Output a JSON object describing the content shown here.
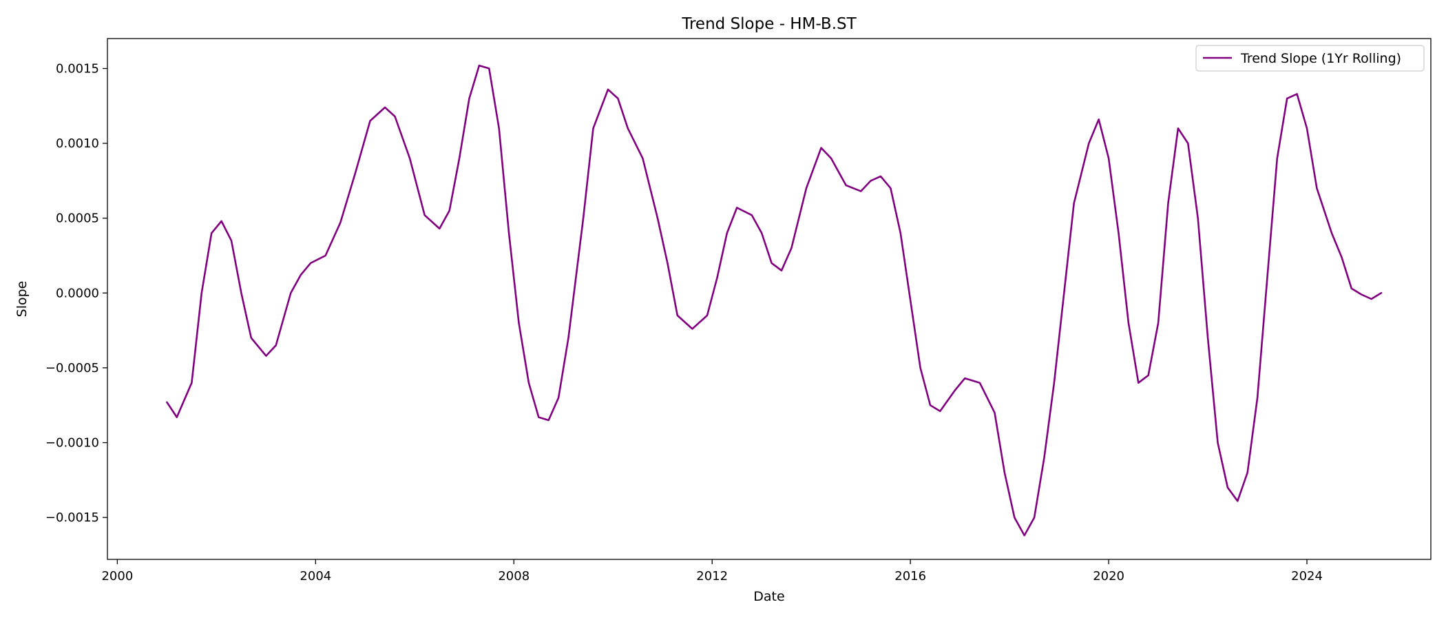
{
  "chart_data": {
    "type": "line",
    "title": "Trend Slope - HM-B.ST",
    "xlabel": "Date",
    "ylabel": "Slope",
    "xlim": [
      1999.8,
      2026.5
    ],
    "ylim": [
      -0.00178,
      0.0017
    ],
    "x_ticks": [
      2000,
      2004,
      2008,
      2012,
      2016,
      2020,
      2024
    ],
    "x_tick_labels": [
      "2000",
      "2004",
      "2008",
      "2012",
      "2016",
      "2020",
      "2024"
    ],
    "y_ticks": [
      -0.0015,
      -0.001,
      -0.0005,
      0.0,
      0.0005,
      0.001,
      0.0015
    ],
    "y_tick_labels": [
      "−0.0015",
      "−0.0010",
      "−0.0005",
      "0.0000",
      "0.0005",
      "0.0010",
      "0.0015"
    ],
    "grid": false,
    "legend_position": "top-right",
    "color": "#800080",
    "series": [
      {
        "name": "Trend Slope (1Yr Rolling)",
        "color": "#800080",
        "points": [
          [
            2001.0,
            -0.00073
          ],
          [
            2001.2,
            -0.00083
          ],
          [
            2001.5,
            -0.0006
          ],
          [
            2001.7,
            0.0
          ],
          [
            2001.9,
            0.0004
          ],
          [
            2002.1,
            0.00048
          ],
          [
            2002.3,
            0.00035
          ],
          [
            2002.5,
            0.0
          ],
          [
            2002.7,
            -0.0003
          ],
          [
            2003.0,
            -0.00042
          ],
          [
            2003.2,
            -0.00035
          ],
          [
            2003.5,
            0.0
          ],
          [
            2003.7,
            0.00012
          ],
          [
            2003.9,
            0.0002
          ],
          [
            2004.2,
            0.00025
          ],
          [
            2004.5,
            0.00047
          ],
          [
            2004.8,
            0.0008
          ],
          [
            2005.1,
            0.00115
          ],
          [
            2005.4,
            0.00124
          ],
          [
            2005.6,
            0.00118
          ],
          [
            2005.9,
            0.0009
          ],
          [
            2006.2,
            0.00052
          ],
          [
            2006.5,
            0.00043
          ],
          [
            2006.7,
            0.00055
          ],
          [
            2006.9,
            0.0009
          ],
          [
            2007.1,
            0.0013
          ],
          [
            2007.3,
            0.00152
          ],
          [
            2007.5,
            0.0015
          ],
          [
            2007.7,
            0.0011
          ],
          [
            2007.9,
            0.0004
          ],
          [
            2008.1,
            -0.0002
          ],
          [
            2008.3,
            -0.0006
          ],
          [
            2008.5,
            -0.00083
          ],
          [
            2008.7,
            -0.00085
          ],
          [
            2008.9,
            -0.0007
          ],
          [
            2009.1,
            -0.0003
          ],
          [
            2009.4,
            0.0005
          ],
          [
            2009.6,
            0.0011
          ],
          [
            2009.9,
            0.00136
          ],
          [
            2010.1,
            0.0013
          ],
          [
            2010.3,
            0.0011
          ],
          [
            2010.6,
            0.0009
          ],
          [
            2010.9,
            0.0005
          ],
          [
            2011.1,
            0.0002
          ],
          [
            2011.3,
            -0.00015
          ],
          [
            2011.6,
            -0.00024
          ],
          [
            2011.9,
            -0.00015
          ],
          [
            2012.1,
            0.0001
          ],
          [
            2012.3,
            0.0004
          ],
          [
            2012.5,
            0.00057
          ],
          [
            2012.8,
            0.00052
          ],
          [
            2013.0,
            0.0004
          ],
          [
            2013.2,
            0.0002
          ],
          [
            2013.4,
            0.00015
          ],
          [
            2013.6,
            0.0003
          ],
          [
            2013.9,
            0.0007
          ],
          [
            2014.2,
            0.00097
          ],
          [
            2014.4,
            0.0009
          ],
          [
            2014.7,
            0.00072
          ],
          [
            2015.0,
            0.00068
          ],
          [
            2015.2,
            0.00075
          ],
          [
            2015.4,
            0.00078
          ],
          [
            2015.6,
            0.0007
          ],
          [
            2015.8,
            0.0004
          ],
          [
            2016.0,
            -5e-05
          ],
          [
            2016.2,
            -0.0005
          ],
          [
            2016.4,
            -0.00075
          ],
          [
            2016.6,
            -0.00079
          ],
          [
            2016.9,
            -0.00065
          ],
          [
            2017.1,
            -0.00057
          ],
          [
            2017.4,
            -0.0006
          ],
          [
            2017.7,
            -0.0008
          ],
          [
            2017.9,
            -0.0012
          ],
          [
            2018.1,
            -0.0015
          ],
          [
            2018.3,
            -0.00162
          ],
          [
            2018.5,
            -0.0015
          ],
          [
            2018.7,
            -0.0011
          ],
          [
            2018.9,
            -0.0006
          ],
          [
            2019.1,
            0.0
          ],
          [
            2019.3,
            0.0006
          ],
          [
            2019.6,
            0.001
          ],
          [
            2019.8,
            0.00116
          ],
          [
            2020.0,
            0.0009
          ],
          [
            2020.2,
            0.0004
          ],
          [
            2020.4,
            -0.0002
          ],
          [
            2020.6,
            -0.0006
          ],
          [
            2020.8,
            -0.00055
          ],
          [
            2021.0,
            -0.0002
          ],
          [
            2021.2,
            0.0006
          ],
          [
            2021.4,
            0.0011
          ],
          [
            2021.6,
            0.001
          ],
          [
            2021.8,
            0.0005
          ],
          [
            2022.0,
            -0.0003
          ],
          [
            2022.2,
            -0.001
          ],
          [
            2022.4,
            -0.0013
          ],
          [
            2022.6,
            -0.00139
          ],
          [
            2022.8,
            -0.0012
          ],
          [
            2023.0,
            -0.0007
          ],
          [
            2023.2,
            0.0001
          ],
          [
            2023.4,
            0.0009
          ],
          [
            2023.6,
            0.0013
          ],
          [
            2023.8,
            0.00133
          ],
          [
            2024.0,
            0.0011
          ],
          [
            2024.2,
            0.0007
          ],
          [
            2024.5,
            0.0004
          ],
          [
            2024.7,
            0.00024
          ],
          [
            2024.9,
            3e-05
          ],
          [
            2025.1,
            -1e-05
          ],
          [
            2025.3,
            -4e-05
          ],
          [
            2025.5,
            0.0
          ]
        ]
      }
    ]
  }
}
